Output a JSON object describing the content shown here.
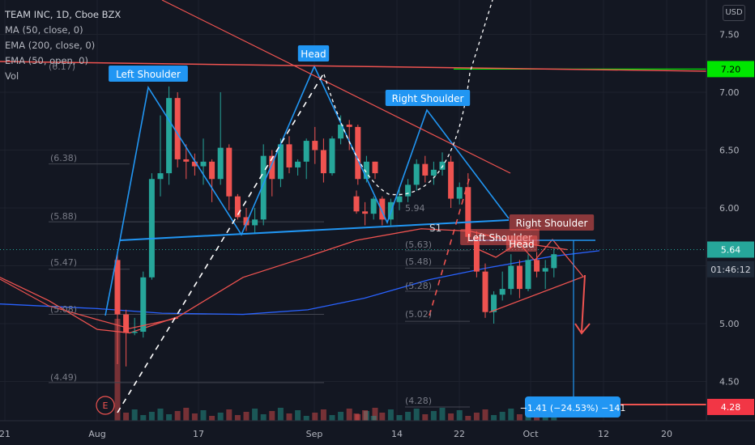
{
  "legend": {
    "symbol": "TEAM INC, 1D, Cboe BZX",
    "indicators": [
      "MA (50, close, 0)",
      "EMA (200, close, 0)",
      "EMA (50, open, 0)",
      "Vol"
    ]
  },
  "currency": "USD",
  "price_axis": {
    "ticks": [
      "7.50",
      "7.00",
      "6.50",
      "6.00",
      "5.50",
      "5.00",
      "4.50"
    ],
    "price_labels": [
      {
        "text": "7.20",
        "price": 7.2,
        "bg": "#00e600",
        "fg": "#000000"
      },
      {
        "text": "5.64",
        "price": 5.64,
        "bg": "#26a69a",
        "fg": "#ffffff"
      },
      {
        "text": "01:46:12",
        "price": 5.47,
        "bg": "#1f2937",
        "fg": "#d1d4dc"
      },
      {
        "text": "4.28",
        "price": 4.28,
        "bg": "#f23645",
        "fg": "#ffffff"
      }
    ]
  },
  "time_axis": {
    "ticks": [
      "21",
      "Aug",
      "17",
      "Sep",
      "14",
      "22",
      "Oct",
      "12",
      "20"
    ]
  },
  "pattern_labels": [
    {
      "text": "Left Shoulder",
      "style": "blue"
    },
    {
      "text": "Head",
      "style": "blue"
    },
    {
      "text": "Right Shoulder",
      "style": "blue"
    },
    {
      "text": "Left Shoulder",
      "style": "red"
    },
    {
      "text": "Head",
      "style": "red"
    },
    {
      "text": "Right Shoulder",
      "style": "red"
    }
  ],
  "level_labels": [
    "(6.38)",
    "(5.88)",
    "(5.47)",
    "(5.08)",
    "(4.49)",
    "(6.17)",
    "5.94",
    "(5.63)",
    "(5.48)",
    "(5.28)",
    "(5.02)",
    "(4.28)",
    "S1"
  ],
  "event_marker": "E",
  "measure_label": "−1.41 (−24.53%) −141",
  "colors": {
    "up": "#26a69a",
    "down": "#ef5350",
    "pattern": "#2196f3",
    "trend": "#ef5350"
  },
  "candles": [
    {
      "o": 5.55,
      "h": 5.6,
      "l": 4.65,
      "c": 5.08
    },
    {
      "o": 5.08,
      "h": 5.12,
      "l": 4.63,
      "c": 4.92
    },
    {
      "o": 4.92,
      "h": 5.05,
      "l": 4.9,
      "c": 4.93
    },
    {
      "o": 4.93,
      "h": 5.45,
      "l": 4.88,
      "c": 5.4
    },
    {
      "o": 5.4,
      "h": 6.3,
      "l": 5.38,
      "c": 6.25
    },
    {
      "o": 6.25,
      "h": 6.8,
      "l": 6.1,
      "c": 6.3
    },
    {
      "o": 6.3,
      "h": 7.05,
      "l": 6.2,
      "c": 6.95
    },
    {
      "o": 6.95,
      "h": 7.0,
      "l": 6.35,
      "c": 6.42
    },
    {
      "o": 6.42,
      "h": 6.55,
      "l": 6.25,
      "c": 6.4
    },
    {
      "o": 6.4,
      "h": 6.47,
      "l": 6.28,
      "c": 6.36
    },
    {
      "o": 6.36,
      "h": 6.6,
      "l": 6.2,
      "c": 6.4
    },
    {
      "o": 6.4,
      "h": 6.42,
      "l": 6.05,
      "c": 6.25
    },
    {
      "o": 6.25,
      "h": 7.0,
      "l": 6.2,
      "c": 6.52
    },
    {
      "o": 6.52,
      "h": 6.55,
      "l": 5.98,
      "c": 6.1
    },
    {
      "o": 6.1,
      "h": 6.12,
      "l": 5.9,
      "c": 5.92
    },
    {
      "o": 5.92,
      "h": 6.0,
      "l": 5.8,
      "c": 5.85
    },
    {
      "o": 5.85,
      "h": 6.0,
      "l": 5.78,
      "c": 5.9
    },
    {
      "o": 5.9,
      "h": 6.55,
      "l": 5.85,
      "c": 6.45
    },
    {
      "o": 6.45,
      "h": 6.5,
      "l": 6.1,
      "c": 6.25
    },
    {
      "o": 6.25,
      "h": 6.6,
      "l": 6.18,
      "c": 6.55
    },
    {
      "o": 6.55,
      "h": 6.62,
      "l": 6.3,
      "c": 6.35
    },
    {
      "o": 6.35,
      "h": 6.42,
      "l": 6.28,
      "c": 6.4
    },
    {
      "o": 6.4,
      "h": 6.6,
      "l": 6.25,
      "c": 6.58
    },
    {
      "o": 6.58,
      "h": 6.7,
      "l": 6.38,
      "c": 6.5
    },
    {
      "o": 6.5,
      "h": 6.6,
      "l": 6.22,
      "c": 6.3
    },
    {
      "o": 6.3,
      "h": 6.62,
      "l": 6.28,
      "c": 6.6
    },
    {
      "o": 6.6,
      "h": 6.8,
      "l": 6.55,
      "c": 6.72
    },
    {
      "o": 6.72,
      "h": 6.76,
      "l": 6.5,
      "c": 6.7
    },
    {
      "o": 6.7,
      "h": 6.72,
      "l": 6.2,
      "c": 6.25
    },
    {
      "o": 6.25,
      "h": 6.45,
      "l": 6.22,
      "c": 6.4
    },
    {
      "o": 6.4,
      "h": 6.4,
      "l": 6.25,
      "c": 6.3
    },
    {
      "o": 6.1,
      "h": 6.15,
      "l": 5.95,
      "c": 5.97
    },
    {
      "o": 5.97,
      "h": 6.05,
      "l": 5.85,
      "c": 5.95
    },
    {
      "o": 5.95,
      "h": 6.1,
      "l": 5.9,
      "c": 6.08
    },
    {
      "o": 6.08,
      "h": 6.1,
      "l": 5.85,
      "c": 5.9
    },
    {
      "o": 5.9,
      "h": 6.08,
      "l": 5.85,
      "c": 6.05
    },
    {
      "o": 6.05,
      "h": 6.18,
      "l": 5.98,
      "c": 6.1
    },
    {
      "o": 6.1,
      "h": 6.25,
      "l": 6.05,
      "c": 6.2
    },
    {
      "o": 6.2,
      "h": 6.42,
      "l": 6.15,
      "c": 6.38
    },
    {
      "o": 6.38,
      "h": 6.45,
      "l": 6.22,
      "c": 6.28
    },
    {
      "o": 6.28,
      "h": 6.4,
      "l": 6.2,
      "c": 6.33
    },
    {
      "o": 6.33,
      "h": 6.48,
      "l": 6.28,
      "c": 6.4
    },
    {
      "o": 6.4,
      "h": 6.45,
      "l": 6.0,
      "c": 6.08
    },
    {
      "o": 6.08,
      "h": 6.22,
      "l": 6.03,
      "c": 6.18
    },
    {
      "o": 6.18,
      "h": 6.3,
      "l": 5.7,
      "c": 5.75
    },
    {
      "o": 5.75,
      "h": 5.8,
      "l": 5.4,
      "c": 5.45
    },
    {
      "o": 5.45,
      "h": 5.52,
      "l": 5.05,
      "c": 5.1
    },
    {
      "o": 5.1,
      "h": 5.28,
      "l": 5.0,
      "c": 5.25
    },
    {
      "o": 5.25,
      "h": 5.45,
      "l": 5.2,
      "c": 5.3
    },
    {
      "o": 5.3,
      "h": 5.6,
      "l": 5.25,
      "c": 5.5
    },
    {
      "o": 5.5,
      "h": 5.55,
      "l": 5.22,
      "c": 5.3
    },
    {
      "o": 5.3,
      "h": 5.6,
      "l": 5.28,
      "c": 5.55
    },
    {
      "o": 5.55,
      "h": 5.62,
      "l": 5.4,
      "c": 5.45
    },
    {
      "o": 5.45,
      "h": 5.55,
      "l": 5.3,
      "c": 5.48
    },
    {
      "o": 5.48,
      "h": 5.65,
      "l": 5.4,
      "c": 5.6
    }
  ]
}
